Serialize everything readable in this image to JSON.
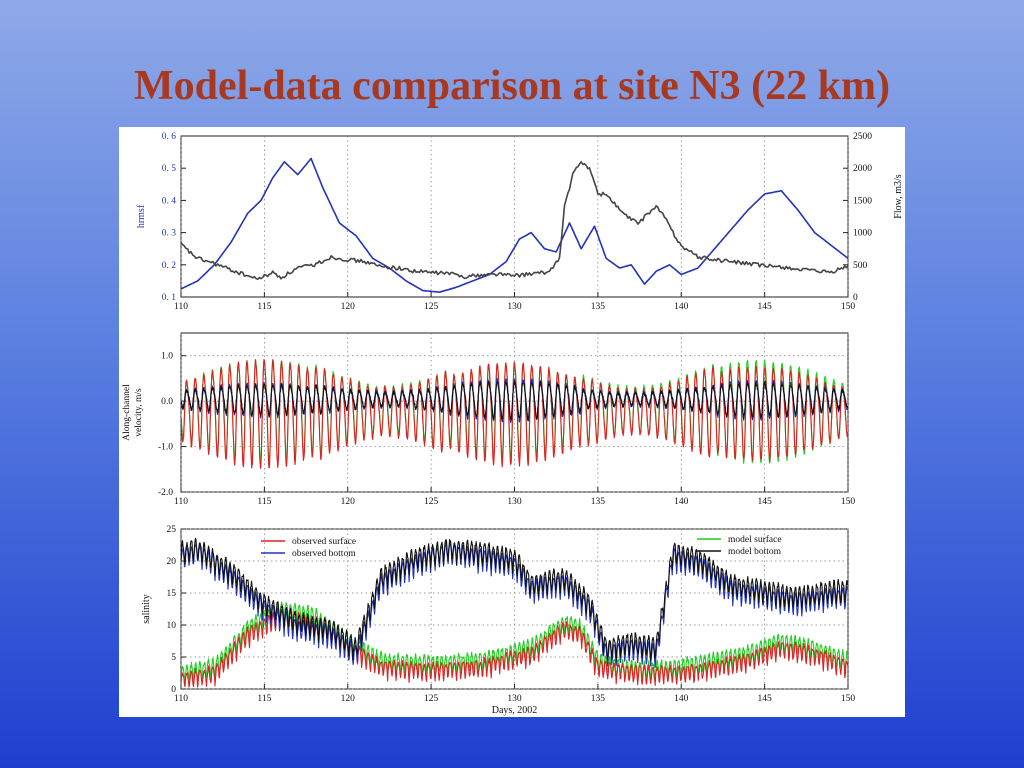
{
  "slide": {
    "title": "Model-data comparison at site N3 (22 km)"
  },
  "chart_data": [
    {
      "type": "line",
      "ylabel_left": "hrmsf",
      "ylabel_right": "Flow, m3/s",
      "xlim": [
        110,
        150
      ],
      "ylim_left": [
        0.1,
        0.6
      ],
      "ylim_right": [
        0,
        2500
      ],
      "x_ticks": [
        "110",
        "115",
        "120",
        "125",
        "130",
        "135",
        "140",
        "145",
        "150"
      ],
      "y_ticks_left": [
        "0. 1",
        "0. 2",
        "0. 3",
        "0. 4",
        "0. 5",
        "0. 6"
      ],
      "y_ticks_right": [
        "0",
        "500",
        "1000",
        "1500",
        "2000",
        "2500"
      ],
      "series": [
        {
          "axis": "left",
          "color": "#2233bb",
          "x": [
            110,
            111,
            112,
            113,
            114,
            114.8,
            115.5,
            116.2,
            117,
            117.8,
            118.5,
            119.5,
            120.5,
            121.5,
            122.5,
            123.5,
            124.5,
            125.5,
            126.5,
            127.5,
            128.5,
            129.5,
            130.3,
            131,
            131.8,
            132.5,
            133.3,
            134,
            134.8,
            135.5,
            136.3,
            137,
            137.8,
            138.5,
            139.3,
            140,
            141,
            142,
            143,
            144,
            145,
            146,
            147,
            148,
            149,
            150
          ],
          "values": [
            0.125,
            0.15,
            0.2,
            0.27,
            0.36,
            0.4,
            0.47,
            0.52,
            0.48,
            0.53,
            0.44,
            0.33,
            0.29,
            0.22,
            0.19,
            0.15,
            0.12,
            0.115,
            0.13,
            0.15,
            0.17,
            0.21,
            0.28,
            0.3,
            0.25,
            0.24,
            0.33,
            0.25,
            0.32,
            0.22,
            0.19,
            0.2,
            0.14,
            0.18,
            0.2,
            0.17,
            0.19,
            0.25,
            0.31,
            0.37,
            0.42,
            0.43,
            0.37,
            0.3,
            0.26,
            0.22
          ]
        },
        {
          "axis": "right",
          "color": "#444444",
          "x": [
            110,
            110.5,
            111,
            112,
            113,
            114,
            114.5,
            115,
            115.5,
            116,
            117,
            118,
            119,
            120,
            121,
            122,
            123,
            124,
            125,
            126,
            127,
            128,
            129,
            130,
            131,
            132,
            132.7,
            133,
            133.5,
            134,
            134.5,
            135,
            135.5,
            136,
            136.5,
            137,
            137.5,
            138,
            138.5,
            139,
            139.5,
            140,
            141,
            142,
            143,
            144,
            145,
            146,
            147,
            148,
            149,
            150
          ],
          "values": [
            820,
            700,
            600,
            520,
            420,
            330,
            280,
            320,
            380,
            300,
            450,
            500,
            620,
            580,
            550,
            470,
            450,
            400,
            380,
            370,
            320,
            340,
            360,
            330,
            360,
            380,
            600,
            1400,
            1900,
            2100,
            2000,
            1600,
            1600,
            1450,
            1300,
            1200,
            1150,
            1300,
            1400,
            1250,
            1000,
            800,
            620,
            580,
            550,
            520,
            480,
            470,
            430,
            400,
            380,
            480
          ]
        }
      ]
    },
    {
      "type": "line",
      "ylabel": "Along-channel velocity, m/s",
      "ylabel_lines": [
        "Along-channel",
        "velocity, m/s"
      ],
      "xlim": [
        110,
        150
      ],
      "ylim": [
        -2.0,
        1.5
      ],
      "x_ticks": [
        "110",
        "115",
        "120",
        "125",
        "130",
        "135",
        "140",
        "145",
        "150"
      ],
      "y_ticks": [
        "1.0",
        "0.0",
        "-1.0",
        "-2.0"
      ],
      "y_tick_values": [
        1.0,
        0.0,
        -1.0,
        -2.0
      ],
      "tidal_period_days": 0.5175,
      "series": [
        {
          "name": "observed surface",
          "color": "#dd2222",
          "amplitude": [
            1.15,
            1.3,
            1.1,
            1.2,
            1.0
          ],
          "offset": -0.2
        },
        {
          "name": "model surface",
          "color": "#22cc22",
          "amplitude": [
            1.1,
            1.25,
            1.0,
            1.2,
            1.1
          ],
          "offset": -0.15
        },
        {
          "name": "observed bottom",
          "color": "#2233bb",
          "amplitude": [
            0.35,
            0.4,
            0.45,
            0.35,
            0.4
          ],
          "offset": 0.05
        },
        {
          "name": "model bottom",
          "color": "#111111",
          "amplitude": [
            0.32,
            0.38,
            0.4,
            0.33,
            0.36
          ],
          "offset": 0.05
        }
      ]
    },
    {
      "type": "line",
      "xlabel": "Days, 2002",
      "ylabel": "salinity",
      "xlim": [
        110,
        150
      ],
      "ylim": [
        0,
        25
      ],
      "x_ticks": [
        "110",
        "115",
        "120",
        "125",
        "130",
        "135",
        "140",
        "145",
        "150"
      ],
      "y_ticks": [
        "0",
        "5",
        "10",
        "15",
        "20",
        "25"
      ],
      "legend": [
        "observed surface",
        "observed bottom",
        "model surface",
        "model bottom"
      ],
      "tidal_period_days": 0.5175,
      "series": [
        {
          "name": "observed surface",
          "color": "#dd2222",
          "x": [
            110,
            112,
            114,
            116,
            118,
            120,
            122,
            125,
            128,
            131,
            133,
            134,
            135,
            136,
            138,
            140,
            142,
            144,
            146,
            148,
            150
          ],
          "values": [
            1,
            2,
            8,
            11,
            10,
            6,
            3,
            2.5,
            3,
            5,
            9,
            8,
            3,
            2.5,
            2,
            2,
            3,
            4,
            6,
            5,
            3
          ],
          "amplitude": 2.0
        },
        {
          "name": "model surface",
          "color": "#22cc22",
          "x": [
            110,
            112,
            114,
            116,
            118,
            120,
            122,
            125,
            128,
            131,
            133,
            134,
            135,
            136,
            138,
            140,
            142,
            144,
            146,
            148,
            150
          ],
          "values": [
            2,
            3,
            9,
            12,
            11,
            7,
            4,
            3.5,
            4,
            6,
            10,
            9,
            4,
            3,
            2.5,
            3,
            4,
            5,
            7,
            6,
            4
          ],
          "amplitude": 2.2
        },
        {
          "name": "observed bottom",
          "color": "#2233bb",
          "x": [
            110,
            111,
            113,
            115,
            117,
            119,
            120.5,
            122,
            124,
            126,
            128,
            130,
            131,
            133,
            134.5,
            135.5,
            137,
            138.5,
            139.5,
            141,
            143,
            145,
            147,
            149,
            150
          ],
          "values": [
            20,
            21,
            17,
            12,
            9,
            8,
            5,
            16,
            19,
            21,
            20,
            19,
            15,
            16,
            12,
            5,
            6,
            5,
            20,
            19,
            15,
            14,
            13,
            14,
            14
          ],
          "amplitude": 2.5
        },
        {
          "name": "model bottom",
          "color": "#111111",
          "x": [
            110,
            111,
            113,
            115,
            117,
            119,
            120.5,
            122,
            124,
            126,
            128,
            130,
            131,
            133,
            134.5,
            135.5,
            137,
            138.5,
            139.5,
            141,
            143,
            145,
            147,
            149,
            150
          ],
          "values": [
            21,
            21.5,
            18,
            13,
            10,
            9,
            6,
            17,
            20,
            21.5,
            21,
            20,
            16,
            17,
            13,
            6,
            7,
            6,
            21,
            20,
            16,
            15,
            14,
            15,
            15
          ],
          "amplitude": 2.5
        }
      ]
    }
  ]
}
